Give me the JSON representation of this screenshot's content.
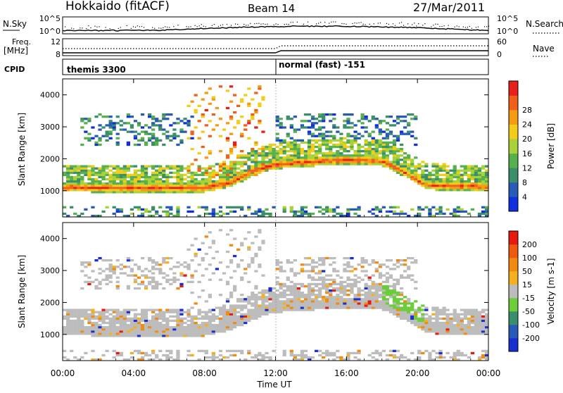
{
  "header": {
    "station": "Hokkaido (fitACF)",
    "beam": "Beam 14",
    "date": "27/Mar/2011"
  },
  "side_labels": {
    "nsky": "N.Sky",
    "nsearch": "N.Search",
    "freq_line1": "Freq.",
    "freq_line2": "[MHz]",
    "nave": "Nave",
    "cpid": "CPID"
  },
  "status_panels": {
    "nsky_ticks_left": [
      "10^5",
      "10^0"
    ],
    "nsky_ticks_right": [
      "10^5",
      "10^0"
    ],
    "freq_ticks_left": [
      "12",
      "8"
    ],
    "nave_ticks_right": [
      "60",
      "0"
    ],
    "cpid_segments": [
      {
        "label": "themis 3300",
        "start_hour": 0,
        "end_hour": 12.0
      },
      {
        "label": "normal (fast) -151",
        "start_hour": 12.0,
        "end_hour": 24.0
      }
    ]
  },
  "chart_data": [
    {
      "type": "heatmap",
      "parameter": "Power",
      "ylabel": "Slant Range [km]",
      "xlabel": "Time UT",
      "x_ticks": [
        "00:00",
        "04:00",
        "08:00",
        "12:00",
        "16:00",
        "20:00",
        "00:00"
      ],
      "x_tick_hours": [
        0,
        4,
        8,
        12,
        16,
        20,
        24
      ],
      "y_ticks": [
        1000,
        2000,
        3000,
        4000
      ],
      "ylim": [
        180,
        4500
      ],
      "xlim": [
        0,
        24
      ],
      "colorbar": {
        "label": "Power [dB]",
        "ticks": [
          "4",
          "8",
          "12",
          "16",
          "20",
          "24",
          "28"
        ],
        "colors": [
          "#1030e0",
          "#2a5ab8",
          "#3a8f6a",
          "#58b04c",
          "#a9d23a",
          "#f3cc1a",
          "#f59a12",
          "#f0601a",
          "#e8201a"
        ]
      },
      "main_echo_band_km": [
        {
          "hour": 0,
          "range": 1080
        },
        {
          "hour": 4,
          "range": 1070
        },
        {
          "hour": 8,
          "range": 1070
        },
        {
          "hour": 9.5,
          "range": 1250
        },
        {
          "hour": 11,
          "range": 1650
        },
        {
          "hour": 12,
          "range": 1800
        },
        {
          "hour": 14,
          "range": 1880
        },
        {
          "hour": 16,
          "range": 1950
        },
        {
          "hour": 18,
          "range": 1900
        },
        {
          "hour": 19.5,
          "range": 1500
        },
        {
          "hour": 20.5,
          "range": 1150
        },
        {
          "hour": 24,
          "range": 1100
        }
      ]
    },
    {
      "type": "heatmap",
      "parameter": "Velocity",
      "ylabel": "Slant Range [km]",
      "xlabel": "Time UT",
      "x_ticks": [
        "00:00",
        "04:00",
        "08:00",
        "12:00",
        "16:00",
        "20:00",
        "00:00"
      ],
      "x_tick_hours": [
        0,
        4,
        8,
        12,
        16,
        20,
        24
      ],
      "y_ticks": [
        1000,
        2000,
        3000,
        4000
      ],
      "ylim": [
        180,
        4500
      ],
      "xlim": [
        0,
        24
      ],
      "colorbar": {
        "label": "Velocity [m s-1]",
        "ticks": [
          "200",
          "100",
          "50",
          "15",
          "-15",
          "-50",
          "-100",
          "-200"
        ],
        "colors": [
          "#1a2fd0",
          "#2a5ab8",
          "#3a8f6a",
          "#6ccc3a",
          "#bcbcbc",
          "#f3b020",
          "#f08a10",
          "#f05a10",
          "#e81a10"
        ]
      }
    }
  ]
}
